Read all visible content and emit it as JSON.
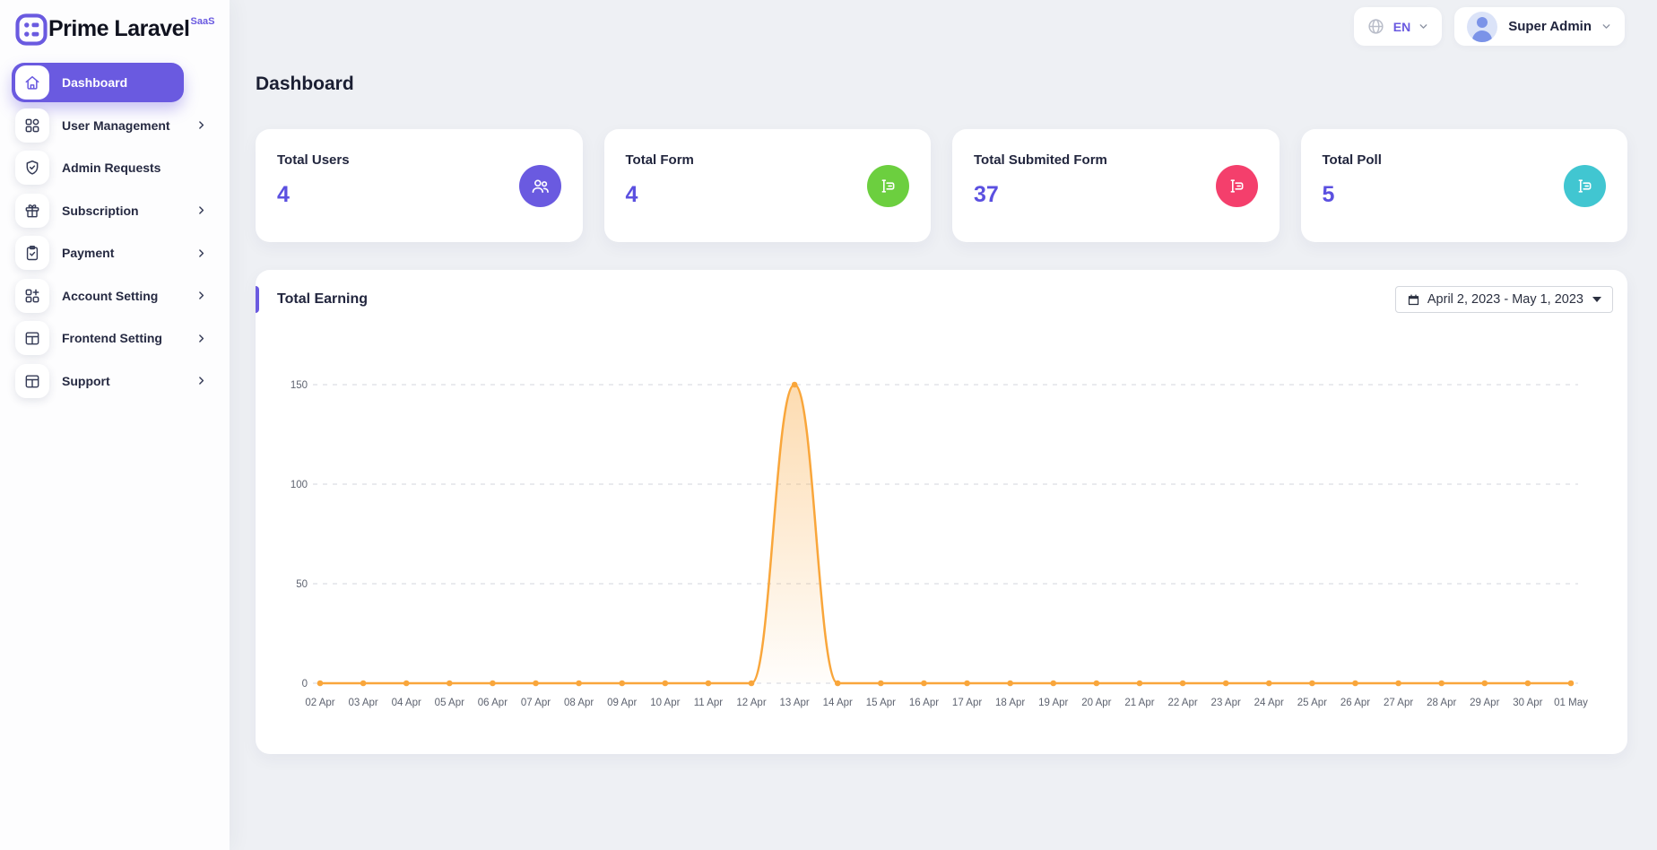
{
  "brand": {
    "name": "Prime Laravel",
    "badge": "SaaS"
  },
  "topbar": {
    "language": "EN",
    "user_name": "Super Admin"
  },
  "sidebar": {
    "items": [
      {
        "label": "Dashboard",
        "icon": "home-icon",
        "active": true,
        "has_submenu": false
      },
      {
        "label": "User Management",
        "icon": "grid-icon",
        "active": false,
        "has_submenu": true
      },
      {
        "label": "Admin Requests",
        "icon": "shield-check-icon",
        "active": false,
        "has_submenu": false
      },
      {
        "label": "Subscription",
        "icon": "gift-icon",
        "active": false,
        "has_submenu": true
      },
      {
        "label": "Payment",
        "icon": "clipboard-check-icon",
        "active": false,
        "has_submenu": true
      },
      {
        "label": "Account Setting",
        "icon": "grid-plus-icon",
        "active": false,
        "has_submenu": true
      },
      {
        "label": "Frontend Setting",
        "icon": "layout-icon",
        "active": false,
        "has_submenu": true
      },
      {
        "label": "Support",
        "icon": "layout-icon",
        "active": false,
        "has_submenu": true
      }
    ]
  },
  "page": {
    "title": "Dashboard"
  },
  "stats": [
    {
      "label": "Total Users",
      "value": "4",
      "icon": "users-icon",
      "color": "#6a5ae0"
    },
    {
      "label": "Total Form",
      "value": "4",
      "icon": "form-icon",
      "color": "#6ccf3f"
    },
    {
      "label": "Total Submited Form",
      "value": "37",
      "icon": "form-icon",
      "color": "#f43f6c"
    },
    {
      "label": "Total Poll",
      "value": "5",
      "icon": "form-icon",
      "color": "#41c6d1"
    }
  ],
  "earning": {
    "title": "Total Earning",
    "date_range": "April 2, 2023 - May 1, 2023"
  },
  "chart_data": {
    "type": "area",
    "title": "Total Earning",
    "x": [
      "02 Apr",
      "03 Apr",
      "04 Apr",
      "05 Apr",
      "06 Apr",
      "07 Apr",
      "08 Apr",
      "09 Apr",
      "10 Apr",
      "11 Apr",
      "12 Apr",
      "13 Apr",
      "14 Apr",
      "15 Apr",
      "16 Apr",
      "17 Apr",
      "18 Apr",
      "19 Apr",
      "20 Apr",
      "21 Apr",
      "22 Apr",
      "23 Apr",
      "24 Apr",
      "25 Apr",
      "26 Apr",
      "27 Apr",
      "28 Apr",
      "29 Apr",
      "30 Apr",
      "01 May"
    ],
    "series": [
      {
        "name": "Total Earning",
        "values": [
          0,
          0,
          0,
          0,
          0,
          0,
          0,
          0,
          0,
          0,
          0,
          150,
          0,
          0,
          0,
          0,
          0,
          0,
          0,
          0,
          0,
          0,
          0,
          0,
          0,
          0,
          0,
          0,
          0,
          0
        ]
      }
    ],
    "ylim": [
      0,
      150
    ],
    "yticks": [
      0,
      50,
      100,
      150
    ],
    "grid": "dashed-horizontal",
    "legend": false,
    "line_color": "#f9a63b",
    "marker_color": "#f9a63b",
    "fill_top": "rgba(249,166,59,0.40)",
    "fill_bottom": "rgba(249,166,59,0.02)",
    "axis_label_color": "#5e6370",
    "grid_color": "#dcdee3"
  }
}
